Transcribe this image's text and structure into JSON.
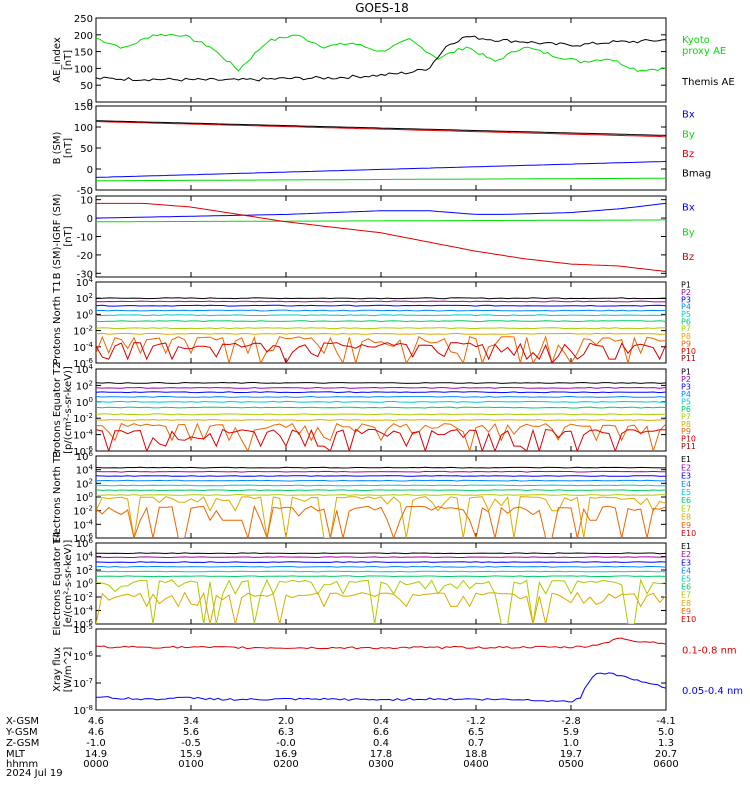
{
  "title": "GOES-18",
  "date_label": "2024 Jul 19",
  "footer": {
    "row_labels": [
      "X-GSM",
      "Y-GSM",
      "Z-GSM",
      "MLT",
      "hhmm"
    ],
    "columns": [
      [
        "4.6",
        "4.6",
        "-1.0",
        "14.9",
        "0000"
      ],
      [
        "3.4",
        "5.6",
        "-0.5",
        "15.9",
        "0100"
      ],
      [
        "2.0",
        "6.3",
        "-0.0",
        "16.9",
        "0200"
      ],
      [
        "0.4",
        "6.6",
        "0.4",
        "17.8",
        "0300"
      ],
      [
        "-1.2",
        "6.5",
        "0.7",
        "18.8",
        "0400"
      ],
      [
        "-2.8",
        "5.9",
        "1.0",
        "19.7",
        "0500"
      ],
      [
        "-4.1",
        "5.0",
        "1.3",
        "20.7",
        "0600"
      ]
    ]
  },
  "colors": {
    "black": "#000000",
    "green": "#00dd00",
    "blue": "#0000ff",
    "red": "#dd0000",
    "darkred": "#990000",
    "channels": [
      "#000000",
      "#aa00aa",
      "#0000ff",
      "#0088ff",
      "#00cccc",
      "#00cc66",
      "#aacc00",
      "#ddaa00",
      "#ee6600",
      "#dd0000",
      "#aa0000"
    ]
  },
  "chart_data": [
    {
      "type": "line",
      "ylabel": "AE_index [nT]",
      "ylim": [
        0,
        250
      ],
      "yticks": [
        "0",
        "50",
        "100",
        "150",
        "200",
        "250"
      ],
      "legend": [
        "Kyoto proxy AE",
        "Themis AE"
      ],
      "series": [
        {
          "name": "Kyoto proxy AE",
          "color": "#00dd00",
          "x": [
            0,
            0.3,
            0.6,
            0.9,
            1.2,
            1.5,
            1.8,
            2.1,
            2.4,
            2.7,
            3.0,
            3.3,
            3.6,
            3.9,
            4.2,
            4.5,
            4.8,
            5.1,
            5.4,
            5.7,
            6.0
          ],
          "values": [
            190,
            160,
            200,
            200,
            165,
            95,
            180,
            200,
            165,
            175,
            150,
            185,
            130,
            165,
            120,
            165,
            140,
            120,
            130,
            95,
            100
          ]
        },
        {
          "name": "Themis AE",
          "color": "#000000",
          "x": [
            0,
            0.5,
            1.0,
            1.5,
            2.0,
            2.5,
            3.0,
            3.3,
            3.5,
            3.7,
            3.9,
            4.2,
            4.5,
            4.8,
            5.1,
            5.4,
            5.7,
            6.0
          ],
          "values": [
            70,
            68,
            66,
            65,
            70,
            72,
            80,
            88,
            100,
            170,
            195,
            185,
            180,
            172,
            170,
            178,
            180,
            185
          ]
        }
      ]
    },
    {
      "type": "line",
      "ylabel": "B (SM) [nT]",
      "ylim": [
        -50,
        150
      ],
      "yticks": [
        "-50",
        "0",
        "50",
        "100",
        "150"
      ],
      "legend": [
        "Bx",
        "By",
        "Bz",
        "Bmag"
      ],
      "series": [
        {
          "name": "Bx",
          "color": "#0000ff",
          "x": [
            0,
            6
          ],
          "values": [
            -20,
            18
          ]
        },
        {
          "name": "By",
          "color": "#00dd00",
          "x": [
            0,
            6
          ],
          "values": [
            -28,
            -22
          ]
        },
        {
          "name": "Bz",
          "color": "#dd0000",
          "x": [
            0,
            6
          ],
          "values": [
            113,
            77
          ]
        },
        {
          "name": "Bmag",
          "color": "#000000",
          "x": [
            0,
            6
          ],
          "values": [
            115,
            80
          ]
        }
      ]
    },
    {
      "type": "line",
      "ylabel": "B (SM)-IGRF (SM) [nT]",
      "ylim": [
        -32,
        12
      ],
      "yticks": [
        "-30",
        "-20",
        "-10",
        "0",
        "10"
      ],
      "legend": [
        "Bx",
        "By",
        "Bz"
      ],
      "series": [
        {
          "name": "Bx",
          "color": "#0000ff",
          "x": [
            0,
            1,
            2,
            3,
            3.5,
            4,
            4.3,
            5,
            5.5,
            6
          ],
          "values": [
            0,
            1,
            2,
            4,
            4,
            2,
            2,
            3,
            5,
            8
          ]
        },
        {
          "name": "By",
          "color": "#00dd00",
          "x": [
            0,
            6
          ],
          "values": [
            -2,
            -1
          ]
        },
        {
          "name": "Bz",
          "color": "#dd0000",
          "x": [
            0,
            0.5,
            1.0,
            1.5,
            2.0,
            2.5,
            3.0,
            3.5,
            4.0,
            4.5,
            5.0,
            5.5,
            6.0
          ],
          "values": [
            8,
            8,
            6,
            2,
            -2,
            -5,
            -8,
            -13,
            -18,
            -22,
            -25,
            -26,
            -29
          ]
        }
      ]
    },
    {
      "type": "line",
      "ylabel": "Protons North T1",
      "ylog": true,
      "ylim": [
        1e-06,
        10000.0
      ],
      "yticks": [
        "10^-6",
        "10^-4",
        "10^-2",
        "10^0",
        "10^2",
        "10^4"
      ],
      "legend": [
        "P1",
        "P2",
        "P3",
        "P4",
        "P5",
        "P6",
        "P7",
        "P8",
        "P9",
        "P10",
        "P11"
      ],
      "series": [
        {
          "name": "P1",
          "value": 100
        },
        {
          "name": "P2",
          "value": 40
        },
        {
          "name": "P3",
          "value": 12
        },
        {
          "name": "P4",
          "value": 3
        },
        {
          "name": "P5",
          "value": 0.8
        },
        {
          "name": "P6",
          "value": 0.15
        },
        {
          "name": "P7",
          "value": 0.02
        },
        {
          "name": "P8",
          "value": 0.004
        },
        {
          "name": "P9",
          "value": 0.0008
        },
        {
          "name": "P10",
          "value": 0.00015
        }
      ]
    },
    {
      "type": "line",
      "ylabel": "Protons Equator T2 [p/(cm²-s-sr-keV)]",
      "ylog": true,
      "ylim": [
        1e-06,
        10000.0
      ],
      "yticks": [
        "10^-6",
        "10^-4",
        "10^-2",
        "10^0",
        "10^2",
        "10^4"
      ],
      "legend": [
        "P1",
        "P2",
        "P3",
        "P4",
        "P5",
        "P6",
        "P7",
        "P8",
        "P9",
        "P10",
        "P11"
      ],
      "series": [
        {
          "name": "P1",
          "value": 200
        },
        {
          "name": "P2",
          "value": 50
        },
        {
          "name": "P3",
          "value": 15
        },
        {
          "name": "P4",
          "value": 4
        },
        {
          "name": "P5",
          "value": 1
        },
        {
          "name": "P6",
          "value": 0.2
        },
        {
          "name": "P7",
          "value": 0.03
        },
        {
          "name": "P8",
          "value": 0.006
        },
        {
          "name": "P9",
          "value": 0.001
        },
        {
          "name": "P10",
          "value": 0.0002
        }
      ]
    },
    {
      "type": "line",
      "ylabel": "Electrons North T3",
      "ylog": true,
      "ylim": [
        1e-06,
        1000000.0
      ],
      "yticks": [
        "10^-6",
        "10^-4",
        "10^-2",
        "10^0",
        "10^2",
        "10^4",
        "10^6"
      ],
      "legend": [
        "E1",
        "E2",
        "E3",
        "E4",
        "E5",
        "E6",
        "E7",
        "E8",
        "E9",
        "E10"
      ],
      "series": [
        {
          "name": "E1",
          "value": 20000
        },
        {
          "name": "E2",
          "value": 5000
        },
        {
          "name": "E3",
          "value": 1200
        },
        {
          "name": "E4",
          "value": 250
        },
        {
          "name": "E5",
          "value": 50
        },
        {
          "name": "E6",
          "value": 10
        },
        {
          "name": "E7",
          "value": 2
        },
        {
          "name": "E8",
          "value": 0.5
        },
        {
          "name": "E9",
          "value": 0.02
        }
      ]
    },
    {
      "type": "line",
      "ylabel": "Electrons Equator T4 [e/(cm²-s-sr-keV)]",
      "ylog": true,
      "ylim": [
        1e-06,
        1000000.0
      ],
      "yticks": [
        "10^-6",
        "10^-4",
        "10^-2",
        "10^0",
        "10^2",
        "10^4",
        "10^6"
      ],
      "legend": [
        "E1",
        "E2",
        "E3",
        "E4",
        "E5",
        "E6",
        "E7",
        "E8",
        "E9",
        "E10"
      ],
      "series": [
        {
          "name": "E1",
          "value": 30000
        },
        {
          "name": "E2",
          "value": 8000
        },
        {
          "name": "E3",
          "value": 1500
        },
        {
          "name": "E4",
          "value": 300
        },
        {
          "name": "E5",
          "value": 60
        },
        {
          "name": "E6",
          "value": 12
        },
        {
          "name": "E7",
          "value": 1.5
        },
        {
          "name": "E8",
          "value": 0.02
        }
      ]
    },
    {
      "type": "line",
      "ylabel": "Xray flux [W/m^2]",
      "ylog": true,
      "ylim": [
        1e-08,
        1e-05
      ],
      "yticks": [
        "10^-8",
        "10^-7",
        "10^-6",
        "10^-5"
      ],
      "legend": [
        "0.1-0.8 nm",
        "0.05-0.4 nm"
      ],
      "series": [
        {
          "name": "0.1-0.8 nm",
          "color": "#dd0000",
          "x": [
            0,
            1,
            2,
            3,
            4,
            5.0,
            5.2,
            5.35,
            5.5,
            5.7,
            6.0
          ],
          "values": [
            2.2e-06,
            2.1e-06,
            2e-06,
            2e-06,
            2.1e-06,
            2.1e-06,
            2.3e-06,
            3e-06,
            4.5e-06,
            3.5e-06,
            3e-06
          ]
        },
        {
          "name": "0.05-0.4 nm",
          "color": "#0000ff",
          "x": [
            0,
            0.5,
            1,
            1.5,
            2,
            2.5,
            3,
            3.5,
            4,
            4.5,
            4.8,
            5.0,
            5.1,
            5.2,
            5.3,
            5.5,
            5.7,
            6.0
          ],
          "values": [
            3e-08,
            2.5e-08,
            2.8e-08,
            2.4e-08,
            2.5e-08,
            2.5e-08,
            2.4e-08,
            2.6e-08,
            2.5e-08,
            2.4e-08,
            2.2e-08,
            2e-08,
            3e-08,
            1.2e-07,
            2.5e-07,
            2e-07,
            1.2e-07,
            7e-08
          ]
        }
      ]
    }
  ]
}
